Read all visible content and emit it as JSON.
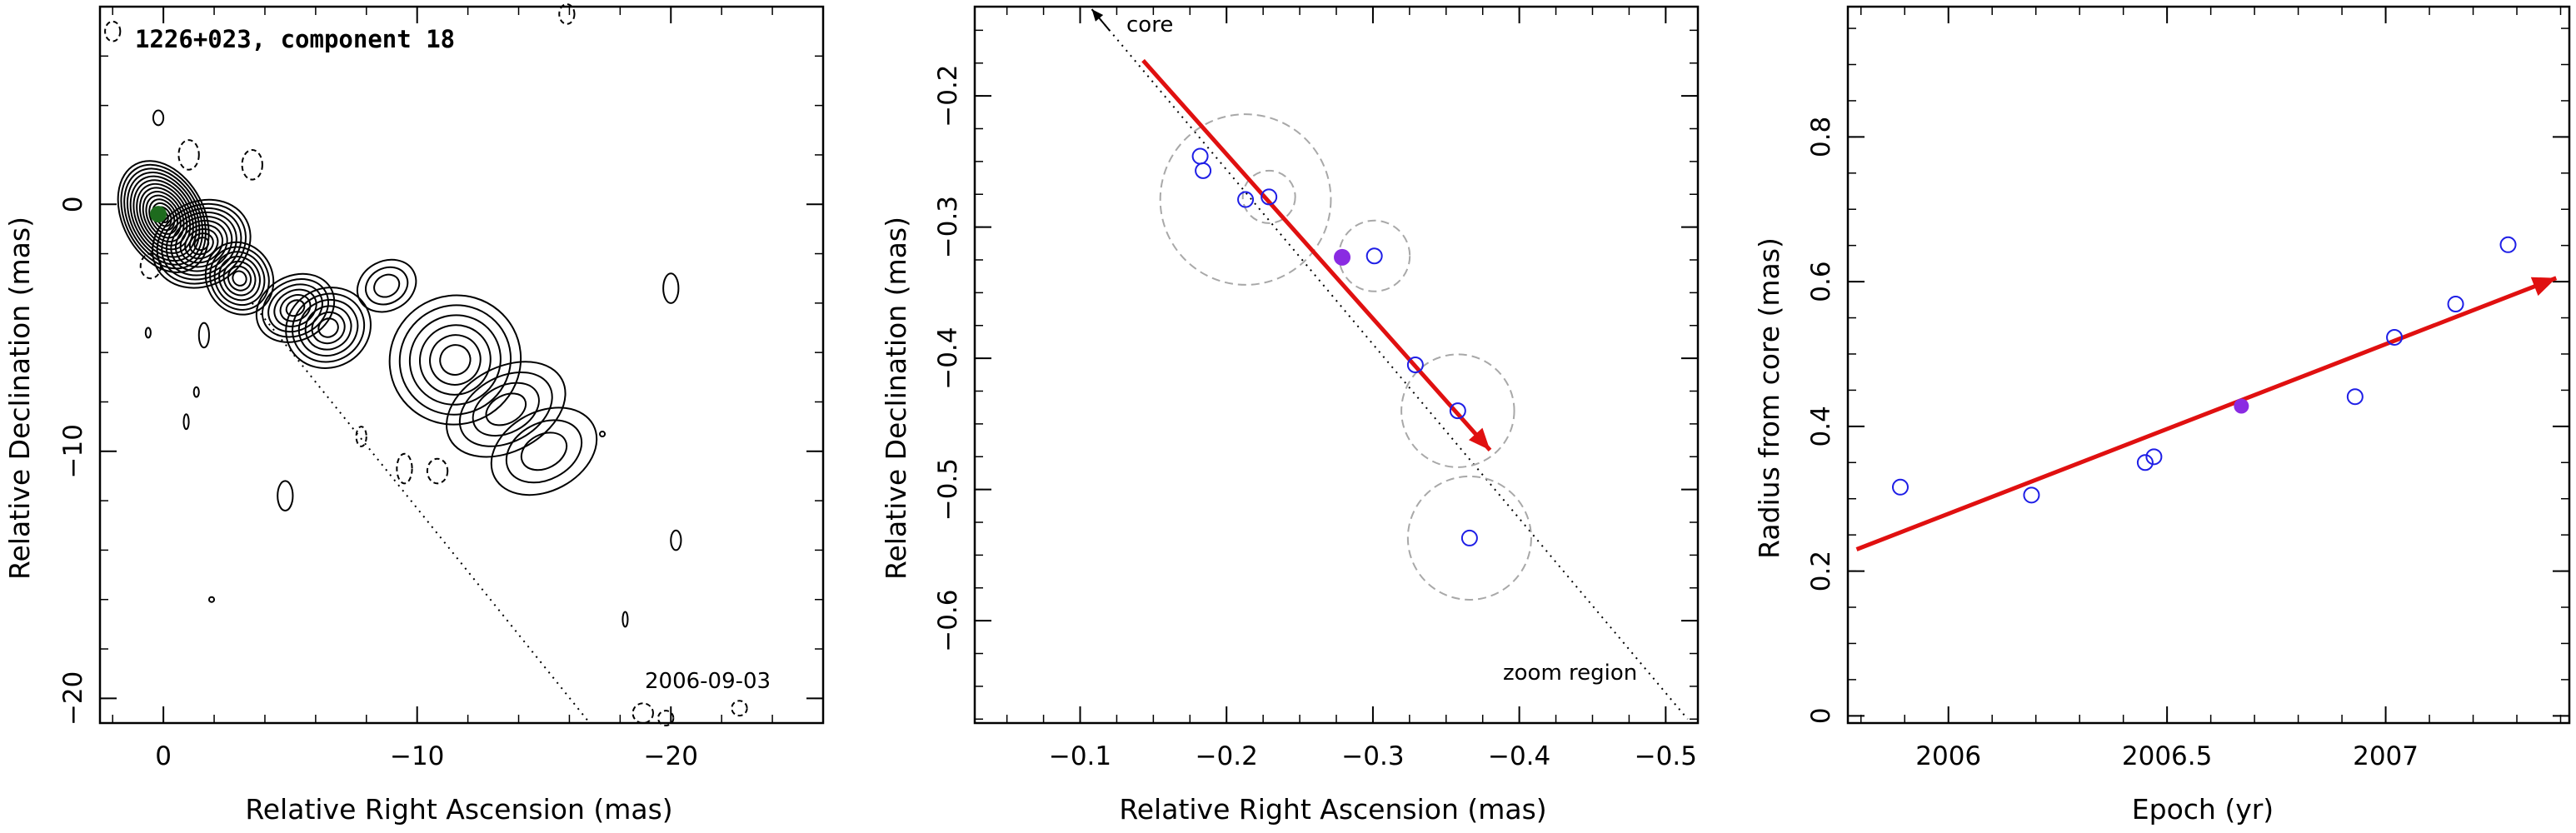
{
  "chart_data": [
    {
      "type": "contour",
      "title": "1226+023, component 18",
      "xlabel": "Relative Right Ascension (mas)",
      "ylabel": "Relative Declination (mas)",
      "xlim": [
        2.5,
        -26
      ],
      "ylim": [
        -21,
        8
      ],
      "xticks": [
        0,
        -10,
        -20
      ],
      "xtick_labels": [
        "0",
        "−10",
        "−20"
      ],
      "yticks": [
        0,
        -10,
        -20
      ],
      "ytick_labels": [
        "0",
        "−10",
        "−20"
      ],
      "annotation": "2006-09-03",
      "component_marker": {
        "x": 0.2,
        "y": -0.4,
        "color": "#1e6b1e"
      },
      "jet_direction_line": {
        "x1": -3.5,
        "y1": -4,
        "x2": -16.8,
        "y2": -21
      },
      "contour_blobs": [
        {
          "x": 0.0,
          "y": -0.5,
          "rx": 1.6,
          "ry": 2.4,
          "levels": 14
        },
        {
          "x": -1.5,
          "y": -1.6,
          "rx": 2.0,
          "ry": 1.7,
          "levels": 10
        },
        {
          "x": -3.0,
          "y": -3.0,
          "rx": 1.3,
          "ry": 1.5,
          "levels": 7
        },
        {
          "x": -5.2,
          "y": -4.2,
          "rx": 1.6,
          "ry": 1.3,
          "levels": 6
        },
        {
          "x": -6.5,
          "y": -5.0,
          "rx": 1.7,
          "ry": 1.6,
          "levels": 6
        },
        {
          "x": -11.5,
          "y": -6.3,
          "rx": 2.6,
          "ry": 2.6,
          "levels": 6
        },
        {
          "x": -13.5,
          "y": -8.3,
          "rx": 2.5,
          "ry": 1.7,
          "levels": 4
        },
        {
          "x": -15.0,
          "y": -10.0,
          "rx": 2.2,
          "ry": 1.6,
          "levels": 3
        },
        {
          "x": -8.8,
          "y": -3.3,
          "rx": 1.2,
          "ry": 1.0,
          "levels": 3
        }
      ],
      "isolated_contours": [
        {
          "x": 2.0,
          "y": 7.0,
          "rx": 0.3,
          "ry": 0.4,
          "dashed": true
        },
        {
          "x": 0.2,
          "y": 3.5,
          "rx": 0.2,
          "ry": 0.3,
          "dashed": false
        },
        {
          "x": -1.0,
          "y": 2.0,
          "rx": 0.4,
          "ry": 0.6,
          "dashed": true
        },
        {
          "x": -3.5,
          "y": 1.6,
          "rx": 0.4,
          "ry": 0.6,
          "dashed": true
        },
        {
          "x": 0.5,
          "y": -2.5,
          "rx": 0.4,
          "ry": 0.5,
          "dashed": true
        },
        {
          "x": -1.6,
          "y": -5.3,
          "rx": 0.2,
          "ry": 0.5,
          "dashed": false
        },
        {
          "x": -1.3,
          "y": -7.6,
          "rx": 0.1,
          "ry": 0.2,
          "dashed": false
        },
        {
          "x": -0.9,
          "y": -8.8,
          "rx": 0.1,
          "ry": 0.3,
          "dashed": false
        },
        {
          "x": -4.8,
          "y": -11.8,
          "rx": 0.3,
          "ry": 0.6,
          "dashed": false
        },
        {
          "x": -7.8,
          "y": -9.4,
          "rx": 0.2,
          "ry": 0.4,
          "dashed": true
        },
        {
          "x": -9.5,
          "y": -10.7,
          "rx": 0.3,
          "ry": 0.6,
          "dashed": true
        },
        {
          "x": -10.8,
          "y": -10.8,
          "rx": 0.4,
          "ry": 0.5,
          "dashed": true
        },
        {
          "x": -20.0,
          "y": -3.4,
          "rx": 0.3,
          "ry": 0.6,
          "dashed": false
        },
        {
          "x": -20.2,
          "y": -13.6,
          "rx": 0.2,
          "ry": 0.4,
          "dashed": false
        },
        {
          "x": -17.3,
          "y": -9.3,
          "rx": 0.1,
          "ry": 0.1,
          "dashed": false
        },
        {
          "x": -18.2,
          "y": -16.8,
          "rx": 0.1,
          "ry": 0.3,
          "dashed": false
        },
        {
          "x": -1.9,
          "y": -16.0,
          "rx": 0.1,
          "ry": 0.1,
          "dashed": false
        },
        {
          "x": -15.9,
          "y": 7.7,
          "rx": 0.3,
          "ry": 0.4,
          "dashed": true
        },
        {
          "x": -18.9,
          "y": -20.6,
          "rx": 0.4,
          "ry": 0.4,
          "dashed": true
        },
        {
          "x": -19.8,
          "y": -20.8,
          "rx": 0.3,
          "ry": 0.3,
          "dashed": true
        },
        {
          "x": -22.7,
          "y": -20.4,
          "rx": 0.3,
          "ry": 0.3,
          "dashed": true
        },
        {
          "x": 0.6,
          "y": -5.2,
          "rx": 0.1,
          "ry": 0.2,
          "dashed": false
        }
      ]
    },
    {
      "type": "scatter",
      "xlabel": "Relative Right Ascension (mas)",
      "ylabel": "Relative Declination (mas)",
      "xlim": [
        -0.028,
        -0.522
      ],
      "ylim": [
        -0.678,
        -0.132
      ],
      "xticks": [
        -0.1,
        -0.2,
        -0.3,
        -0.4,
        -0.5
      ],
      "xtick_labels": [
        "−0.1",
        "−0.2",
        "−0.3",
        "−0.4",
        "−0.5"
      ],
      "yticks": [
        -0.2,
        -0.3,
        -0.4,
        -0.5,
        -0.6
      ],
      "ytick_labels": [
        "−0.2",
        "−0.3",
        "−0.4",
        "−0.5",
        "−0.6"
      ],
      "labels": {
        "core": "core",
        "zoom": "zoom region"
      },
      "points": [
        {
          "x": -0.182,
          "y": -0.246
        },
        {
          "x": -0.184,
          "y": -0.257
        },
        {
          "x": -0.213,
          "y": -0.279
        },
        {
          "x": -0.229,
          "y": -0.277
        },
        {
          "x": -0.301,
          "y": -0.322
        },
        {
          "x": -0.329,
          "y": -0.405
        },
        {
          "x": -0.358,
          "y": -0.44
        },
        {
          "x": -0.366,
          "y": -0.537
        }
      ],
      "highlighted_point": {
        "x": -0.279,
        "y": -0.323,
        "color": "#8a2be2"
      },
      "error_circles": [
        {
          "x": -0.213,
          "y": -0.279,
          "r": 0.065
        },
        {
          "x": -0.229,
          "y": -0.277,
          "r": 0.02
        },
        {
          "x": -0.301,
          "y": -0.322,
          "r": 0.027
        },
        {
          "x": -0.358,
          "y": -0.44,
          "r": 0.043
        },
        {
          "x": -0.366,
          "y": -0.537,
          "r": 0.047
        }
      ],
      "arrow": {
        "x1": -0.143,
        "y1": -0.173,
        "x2": -0.38,
        "y2": -0.47,
        "color": "#e01010"
      },
      "dotted_line": {
        "x1": -0.108,
        "y1": -0.134,
        "x2": -0.515,
        "y2": -0.675
      },
      "point_color": "#1e1ee6"
    },
    {
      "type": "scatter",
      "xlabel": "Epoch (yr)",
      "ylabel": "Radius from core (mas)",
      "xlim": [
        2005.77,
        2007.42
      ],
      "ylim": [
        -0.01,
        0.98
      ],
      "xticks": [
        2006,
        2006.5,
        2007
      ],
      "xtick_labels": [
        "2006",
        "2006.5",
        "2007"
      ],
      "yticks": [
        0,
        0.2,
        0.4,
        0.6,
        0.8
      ],
      "ytick_labels": [
        "0",
        "0.2",
        "0.4",
        "0.6",
        "0.8"
      ],
      "points": [
        {
          "x": 2005.89,
          "y": 0.316
        },
        {
          "x": 2006.19,
          "y": 0.305
        },
        {
          "x": 2006.45,
          "y": 0.35
        },
        {
          "x": 2006.47,
          "y": 0.358
        },
        {
          "x": 2006.93,
          "y": 0.441
        },
        {
          "x": 2007.02,
          "y": 0.523
        },
        {
          "x": 2007.16,
          "y": 0.569
        },
        {
          "x": 2007.28,
          "y": 0.651
        }
      ],
      "highlighted_point": {
        "x": 2006.67,
        "y": 0.428,
        "color": "#8a2be2"
      },
      "arrow": {
        "x1": 2005.79,
        "y1": 0.23,
        "x2": 2007.39,
        "y2": 0.605,
        "color": "#e01010"
      },
      "point_color": "#1e1ee6"
    }
  ]
}
